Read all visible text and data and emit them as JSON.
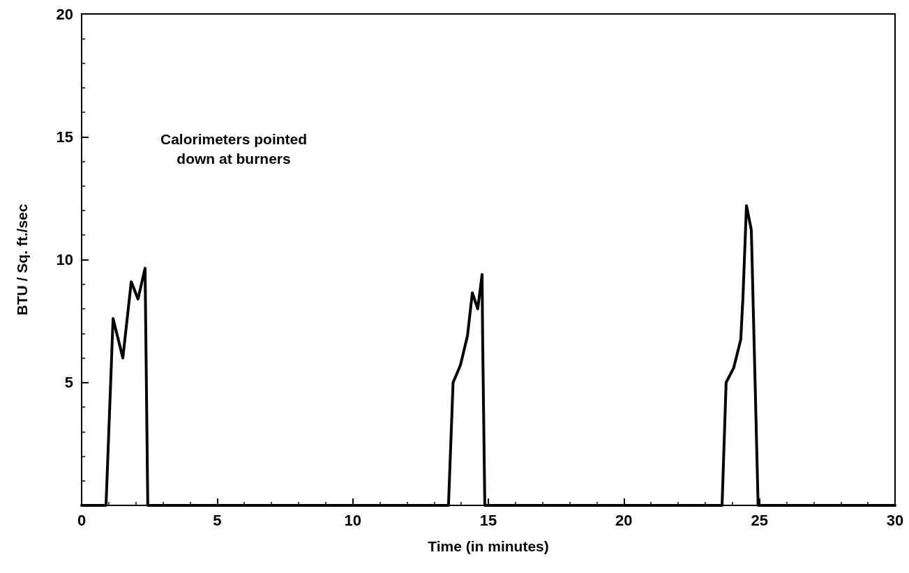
{
  "chart_data": {
    "type": "line",
    "xlabel": "Time (in minutes)",
    "ylabel": "BTU / Sq. ft./sec",
    "annotations": [
      "Calorimeters pointed\ndown at burners"
    ],
    "xlim": [
      0,
      30
    ],
    "xticks": [
      0,
      5,
      10,
      15,
      20,
      25,
      30
    ],
    "ylim": [
      0,
      20
    ],
    "yticks": [
      5,
      10,
      15,
      20
    ],
    "grid": false,
    "marker": "none",
    "line_style": "solid",
    "series": [
      {
        "color": "#000000",
        "x": [
          0,
          0.9,
          1.16,
          1.52,
          1.83,
          2.08,
          2.34,
          2.44,
          13.53,
          13.7,
          13.97,
          14.23,
          14.41,
          14.61,
          14.77,
          14.79,
          14.87,
          23.62,
          23.77,
          24.05,
          24.31,
          24.39,
          24.52,
          24.7,
          24.95,
          30
        ],
        "values": [
          0,
          0,
          7.6,
          6.0,
          9.1,
          8.4,
          9.65,
          0,
          0,
          5.0,
          5.7,
          6.9,
          8.65,
          8.0,
          9.4,
          6.8,
          0,
          0,
          5.0,
          5.6,
          6.75,
          8.45,
          12.2,
          11.2,
          0,
          0
        ]
      }
    ]
  }
}
